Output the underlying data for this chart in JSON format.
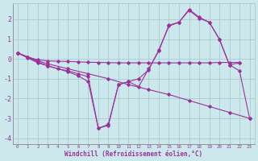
{
  "xlabel": "Windchill (Refroidissement éolien,°C)",
  "background_color": "#cce8ec",
  "grid_color": "#aacccc",
  "line_color": "#993399",
  "xlim": [
    -0.5,
    23.5
  ],
  "ylim": [
    -4.3,
    2.8
  ],
  "ytick_values": [
    -4,
    -3,
    -2,
    -1,
    0,
    1,
    2
  ],
  "lines": [
    {
      "x": [
        0,
        1,
        2,
        3,
        4,
        5,
        6,
        7,
        8,
        9,
        10,
        11,
        12,
        13,
        14,
        15,
        16,
        17,
        18,
        19,
        20,
        21,
        22
      ],
      "y": [
        0.3,
        0.05,
        -0.2,
        -0.35,
        -0.5,
        -0.6,
        -0.75,
        -0.9,
        -3.5,
        -3.3,
        -1.3,
        -1.15,
        -1.4,
        -0.5,
        0.4,
        1.7,
        1.85,
        2.5,
        2.1,
        1.85,
        1.0,
        -0.3,
        -0.2
      ]
    },
    {
      "x": [
        0,
        1,
        2,
        3,
        4,
        5,
        6,
        7,
        8,
        9,
        10,
        11,
        12,
        13,
        14,
        15,
        16,
        17,
        18,
        19,
        20,
        21,
        22
      ],
      "y": [
        0.3,
        0.1,
        -0.05,
        -0.1,
        -0.12,
        -0.13,
        -0.15,
        -0.17,
        -0.18,
        -0.19,
        -0.2,
        -0.2,
        -0.2,
        -0.2,
        -0.2,
        -0.2,
        -0.2,
        -0.2,
        -0.2,
        -0.2,
        -0.18,
        -0.18,
        -0.18
      ]
    },
    {
      "x": [
        0,
        1,
        2,
        3,
        5,
        7,
        9,
        11,
        13,
        15,
        17,
        19,
        21,
        23
      ],
      "y": [
        0.3,
        0.1,
        -0.1,
        -0.25,
        -0.5,
        -0.75,
        -1.0,
        -1.3,
        -1.55,
        -1.8,
        -2.1,
        -2.4,
        -2.7,
        -3.0
      ]
    },
    {
      "x": [
        0,
        2,
        3,
        5,
        6,
        7,
        8,
        9,
        10,
        11,
        12,
        13,
        14,
        15,
        16,
        17,
        18,
        19,
        20,
        21,
        22,
        23
      ],
      "y": [
        0.3,
        -0.15,
        -0.35,
        -0.65,
        -0.85,
        -1.15,
        -3.5,
        -3.35,
        -1.3,
        -1.15,
        -1.0,
        -0.55,
        0.45,
        1.65,
        1.85,
        2.45,
        2.05,
        1.85,
        1.0,
        -0.3,
        -0.6,
        -3.0
      ]
    }
  ]
}
